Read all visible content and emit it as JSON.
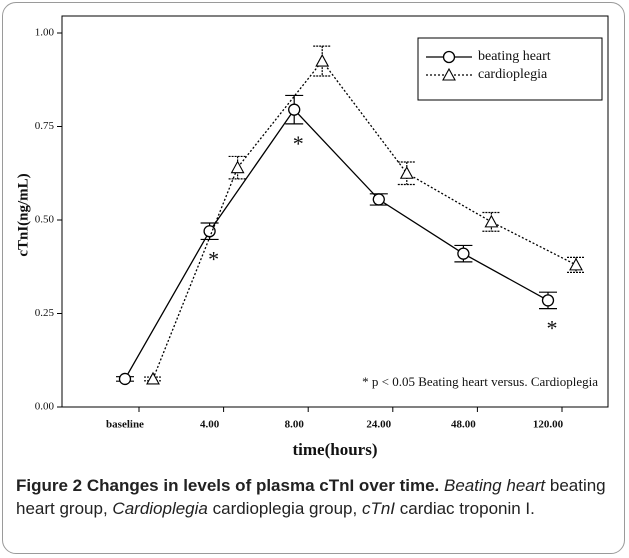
{
  "chart_data": {
    "type": "line",
    "ylabel": "cTnI(ng/mL)",
    "xlabel": "time(hours)",
    "categories": [
      "baseline",
      "4.00",
      "8.00",
      "24.00",
      "48.00",
      "120.00"
    ],
    "series": [
      {
        "name": "beating heart",
        "color": "#000000",
        "marker": "circle",
        "dashed": false,
        "values": [
          0.075,
          0.47,
          0.795,
          0.555,
          0.41,
          0.285
        ],
        "errors": [
          0.006,
          0.022,
          0.038,
          0.015,
          0.022,
          0.022
        ]
      },
      {
        "name": "cardioplegia",
        "color": "#000000",
        "marker": "triangle",
        "dashed": true,
        "values": [
          0.075,
          0.64,
          0.925,
          0.625,
          0.495,
          0.38
        ],
        "errors": [
          0.005,
          0.03,
          0.04,
          0.03,
          0.025,
          0.02
        ]
      }
    ],
    "significance": [
      null,
      "*",
      "*",
      null,
      null,
      "*"
    ],
    "note": "* p < 0.05 Beating heart versus. Cardioplegia",
    "ylim": [
      0,
      1
    ],
    "yticks": [
      {
        "value": 0,
        "label": "0.00"
      },
      {
        "value": 0.25,
        "label": "0.25"
      },
      {
        "value": 0.5,
        "label": "0.50"
      },
      {
        "value": 0.75,
        "label": "0.75"
      },
      {
        "value": 1,
        "label": "1.00"
      }
    ],
    "legend": "top-right"
  },
  "caption": {
    "title": "Figure 2 Changes in levels of plasma cTnI over time.",
    "parts": [
      {
        "text": "Beating heart",
        "italic": true
      },
      {
        "text": "beating heart group,",
        "italic": false
      },
      {
        "text": "Cardioplegia",
        "italic": true
      },
      {
        "text": "cardioplegia group,",
        "italic": false
      },
      {
        "text": "cTnI",
        "italic": true
      },
      {
        "text": "cardiac troponin I.",
        "italic": false
      }
    ]
  }
}
